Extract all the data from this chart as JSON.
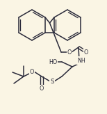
{
  "bg_color": "#faf5e4",
  "line_color": "#2a2a3a",
  "lw": 1.1,
  "figsize": [
    1.54,
    1.64
  ],
  "dpi": 100,
  "xlim": [
    0,
    154
  ],
  "ylim": [
    0,
    164
  ]
}
